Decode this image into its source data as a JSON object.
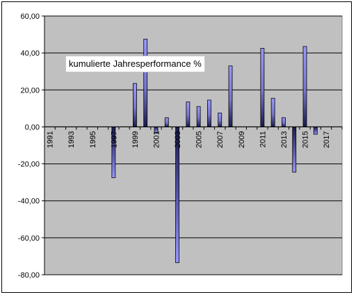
{
  "chart_data": {
    "type": "bar",
    "legend": "kumulierte Jahresperformance %",
    "legend_placement": "top-left",
    "grid": true,
    "ylim": [
      -80,
      60
    ],
    "yticks": [
      "60,00",
      "40,00",
      "20,00",
      "0,00",
      "-20,00",
      "-40,00",
      "-60,00",
      "-80,00"
    ],
    "xtick_labels": [
      "1991",
      "1993",
      "1995",
      "1997",
      "1999",
      "2001",
      "2003",
      "2005",
      "2007",
      "2009",
      "2011",
      "2013",
      "2015",
      "2017"
    ],
    "categories": [
      "1991",
      "1992",
      "1993",
      "1994",
      "1995",
      "1996",
      "1997",
      "1998",
      "1999",
      "2000",
      "2001",
      "2002",
      "2003",
      "2004",
      "2005",
      "2006",
      "2007",
      "2008",
      "2009",
      "2010",
      "2011",
      "2012",
      "2013",
      "2014",
      "2015",
      "2016",
      "2017",
      "2018"
    ],
    "values": [
      0,
      0,
      0,
      0,
      0,
      0,
      -27.5,
      0,
      23.5,
      47.5,
      -3.0,
      5.0,
      -73.5,
      13.5,
      11.0,
      14.5,
      7.5,
      33.0,
      0,
      0,
      42.5,
      15.5,
      5.0,
      -24.5,
      43.5,
      -4.0,
      0,
      0
    ],
    "colors": {
      "bar_fill": "#9999ff",
      "bar_dark": "#1a1a4d",
      "plot_bg": "#c0c0c0",
      "grid": "#000000"
    }
  }
}
